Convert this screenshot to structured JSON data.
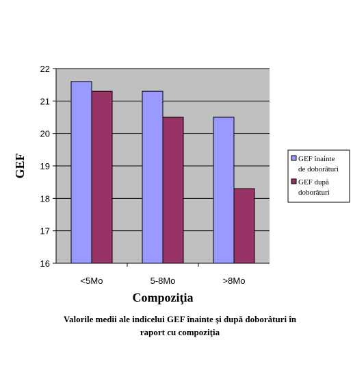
{
  "chart_data": {
    "type": "bar",
    "categories": [
      "<5Mo",
      "5-8Mo",
      ">8Mo"
    ],
    "series": [
      {
        "name": "GEF înainte de doborâturi",
        "legend_lines": [
          "GEF înainte",
          "de doborâturi"
        ],
        "color": "#9999ff",
        "values": [
          21.6,
          21.3,
          20.5
        ]
      },
      {
        "name": "GEF după doborâturi",
        "legend_lines": [
          "GEF după",
          "doborâturi"
        ],
        "color": "#993366",
        "values": [
          21.3,
          20.5,
          18.3
        ]
      }
    ],
    "xlabel": "Compoziţia",
    "ylabel": "GEF",
    "ylim": [
      16,
      22
    ],
    "yticks": [
      16,
      17,
      18,
      19,
      20,
      21,
      22
    ],
    "grid": true,
    "legend_position": "right",
    "plot_background": "#c0c0c0"
  },
  "caption": {
    "line1": "Valorile medii ale indicelui GEF înainte şi după doborâturi în",
    "line2": "raport cu compoziţia"
  }
}
